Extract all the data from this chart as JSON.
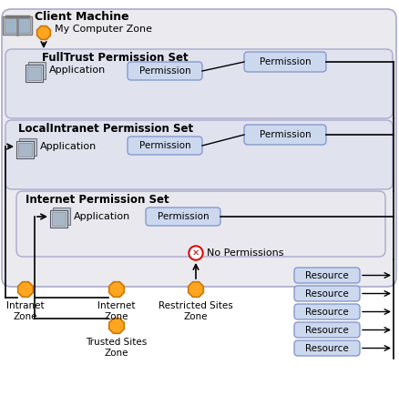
{
  "title": "Client Machine",
  "bg_outer": "#eaeaef",
  "bg_fulltrust": "#e0e2ee",
  "bg_localintranet": "#e0e2ee",
  "bg_internet": "#e8e8ee",
  "permission_box_color": "#ccd8ee",
  "resource_box_color": "#ccd8ee",
  "orange_color": "#FFA520",
  "fulltrust_label": "FullTrust Permission Set",
  "localintranet_label": "LocalIntranet Permission Set",
  "internet_label": "Internet Permission Set",
  "no_permissions_label": "No Permissions",
  "permission_label": "Permission",
  "application_label": "Application",
  "resource_label": "Resource",
  "my_computer_label": "My Computer Zone",
  "intranet_label": "Intranet\nZone",
  "internet_zone_label": "Internet\nZone",
  "restricted_label": "Restricted Sites\nZone",
  "trusted_label": "Trusted Sites\nZone"
}
